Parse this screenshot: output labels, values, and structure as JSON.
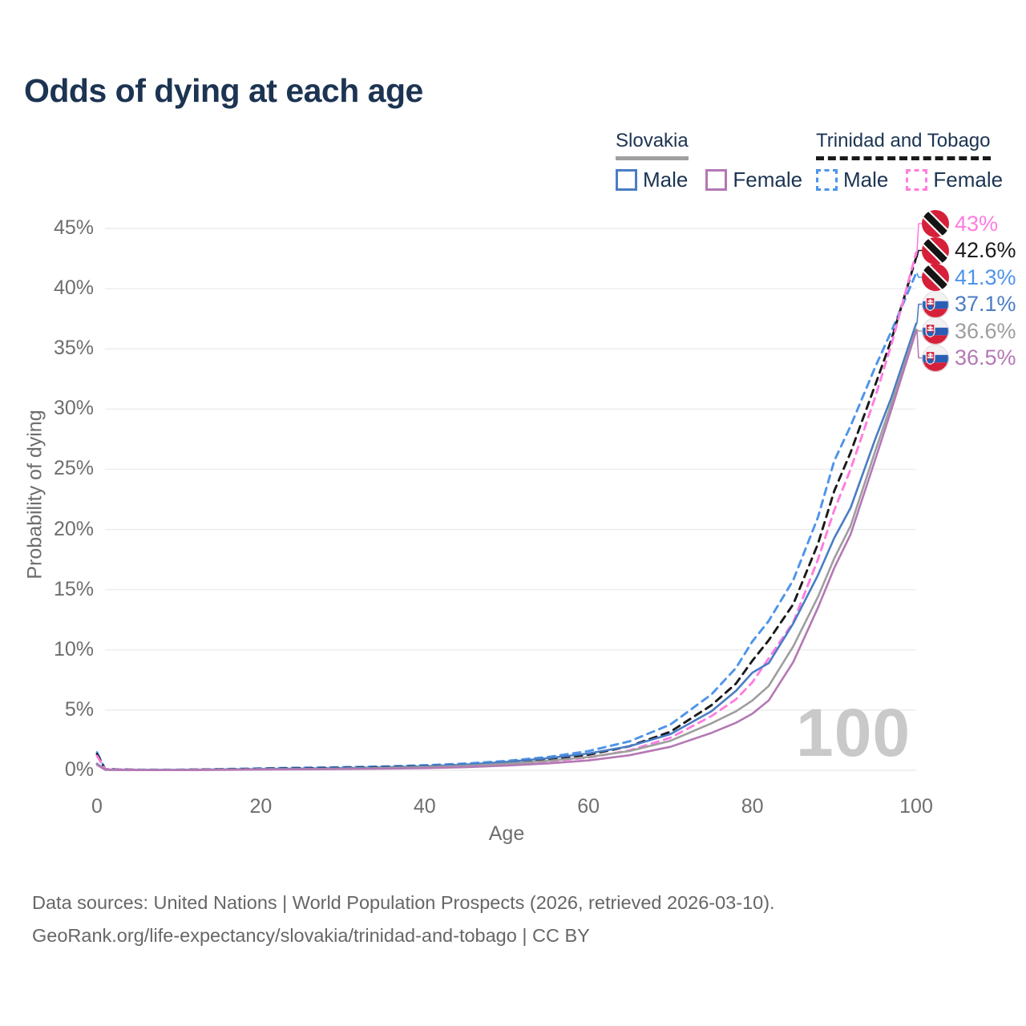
{
  "title": "Odds of dying at each age",
  "legend": {
    "groups": [
      {
        "name": "Slovakia",
        "line_style": "solid",
        "underline_color": "#a0a0a0",
        "items": [
          {
            "label": "Male",
            "color": "#4a7dc4",
            "dashed": false
          },
          {
            "label": "Female",
            "color": "#b478b4",
            "dashed": false
          }
        ]
      },
      {
        "name": "Trinidad and Tobago",
        "line_style": "dashed",
        "underline_color": "#1a1a1a",
        "items": [
          {
            "label": "Male",
            "color": "#4d94ea",
            "dashed": true
          },
          {
            "label": "Female",
            "color": "#ff7ce0",
            "dashed": true
          }
        ]
      }
    ]
  },
  "chart_data": {
    "type": "line",
    "title": "Odds of dying at each age",
    "xlabel": "Age",
    "ylabel": "Probability of dying",
    "xlim": [
      0,
      100
    ],
    "ylim": [
      0,
      45
    ],
    "grid": "horizontal",
    "x_ticks": [
      {
        "value": 0,
        "label": "0"
      },
      {
        "value": 20,
        "label": "20"
      },
      {
        "value": 40,
        "label": "40"
      },
      {
        "value": 60,
        "label": "60"
      },
      {
        "value": 80,
        "label": "80"
      },
      {
        "value": 100,
        "label": "100"
      }
    ],
    "y_ticks": [
      {
        "value": 0,
        "label": "0%"
      },
      {
        "value": 5,
        "label": "5%"
      },
      {
        "value": 10,
        "label": "10%"
      },
      {
        "value": 15,
        "label": "15%"
      },
      {
        "value": 20,
        "label": "20%"
      },
      {
        "value": 25,
        "label": "25%"
      },
      {
        "value": 30,
        "label": "30%"
      },
      {
        "value": 35,
        "label": "35%"
      },
      {
        "value": 40,
        "label": "40%"
      },
      {
        "value": 45,
        "label": "45%"
      }
    ],
    "x": [
      0,
      1,
      5,
      10,
      15,
      20,
      25,
      30,
      35,
      40,
      45,
      50,
      55,
      60,
      65,
      70,
      75,
      78,
      80,
      82,
      85,
      88,
      90,
      92,
      95,
      97,
      100
    ],
    "series": [
      {
        "id": "trinidad-and-tobago-male",
        "country": "Trinidad and Tobago",
        "sex": "male",
        "color": "#4d94ea",
        "dashed": true,
        "flag": "trinidad-and-tobago",
        "end_label": "41.3%",
        "y": [
          1.5,
          0.1,
          0.05,
          0.05,
          0.1,
          0.16,
          0.21,
          0.26,
          0.32,
          0.42,
          0.56,
          0.78,
          1.1,
          1.6,
          2.4,
          3.8,
          6.3,
          8.5,
          10.7,
          12.4,
          15.8,
          21.0,
          25.7,
          28.6,
          33.5,
          36.5,
          41.3
        ]
      },
      {
        "id": "trinidad-and-tobago-both",
        "country": "Trinidad and Tobago",
        "sex": "both",
        "color": "#1a1a1a",
        "dashed": true,
        "flag": "trinidad-and-tobago",
        "end_label": "42.6%",
        "y": [
          1.35,
          0.09,
          0.04,
          0.04,
          0.08,
          0.12,
          0.16,
          0.2,
          0.26,
          0.34,
          0.46,
          0.64,
          0.92,
          1.3,
          2.0,
          3.2,
          5.4,
          7.2,
          9.1,
          10.8,
          13.8,
          18.8,
          23.2,
          26.4,
          32.0,
          35.8,
          42.6
        ]
      },
      {
        "id": "trinidad-and-tobago-female",
        "country": "Trinidad and Tobago",
        "sex": "female",
        "color": "#ff7ce0",
        "dashed": true,
        "flag": "trinidad-and-tobago",
        "end_label": "43%",
        "y": [
          1.2,
          0.08,
          0.04,
          0.04,
          0.06,
          0.09,
          0.11,
          0.14,
          0.19,
          0.26,
          0.36,
          0.51,
          0.74,
          1.05,
          1.65,
          2.7,
          4.5,
          5.9,
          7.3,
          9.3,
          12.3,
          17.5,
          21.6,
          25.0,
          31.0,
          35.4,
          43.0
        ]
      },
      {
        "id": "slovakia-male",
        "country": "Slovakia",
        "sex": "male",
        "color": "#4a7dc4",
        "dashed": false,
        "flag": "slovakia",
        "end_label": "37.1%",
        "y": [
          0.55,
          0.05,
          0.03,
          0.03,
          0.06,
          0.1,
          0.13,
          0.17,
          0.23,
          0.32,
          0.47,
          0.7,
          1.0,
          1.4,
          2.0,
          3.0,
          4.9,
          6.6,
          8.1,
          8.9,
          12.2,
          16.2,
          19.3,
          21.8,
          27.5,
          31.0,
          37.1
        ]
      },
      {
        "id": "slovakia-both",
        "country": "Slovakia",
        "sex": "both",
        "color": "#9e9e9e",
        "dashed": false,
        "flag": "slovakia",
        "end_label": "36.6%",
        "y": [
          0.5,
          0.045,
          0.025,
          0.025,
          0.05,
          0.08,
          0.1,
          0.13,
          0.18,
          0.25,
          0.36,
          0.54,
          0.78,
          1.1,
          1.6,
          2.45,
          3.9,
          4.9,
          5.8,
          7.0,
          10.3,
          14.4,
          17.6,
          20.3,
          26.5,
          30.5,
          36.6
        ]
      },
      {
        "id": "slovakia-female",
        "country": "Slovakia",
        "sex": "female",
        "color": "#b478b4",
        "dashed": false,
        "flag": "slovakia",
        "end_label": "36.5%",
        "y": [
          0.45,
          0.04,
          0.02,
          0.02,
          0.04,
          0.06,
          0.08,
          0.1,
          0.13,
          0.18,
          0.26,
          0.39,
          0.57,
          0.82,
          1.25,
          1.95,
          3.1,
          3.95,
          4.7,
          5.8,
          9.0,
          13.5,
          16.8,
          19.6,
          25.8,
          30.0,
          36.5
        ]
      }
    ]
  },
  "watermark": "100",
  "footer": {
    "line1": "Data sources: United Nations | World Population Prospects (2026, retrieved 2026-03-10).",
    "line2": "GeoRank.org/life-expectancy/slovakia/trinidad-and-tobago | CC BY"
  }
}
